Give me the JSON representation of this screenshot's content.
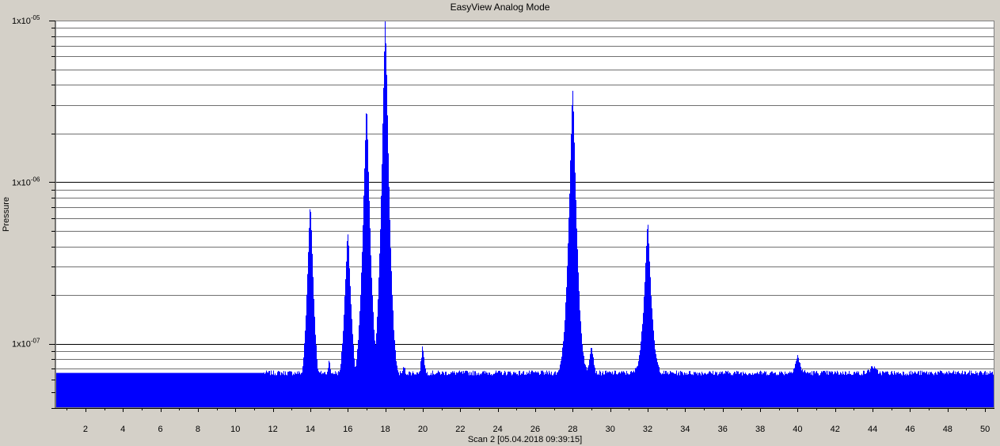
{
  "window": {
    "title": "EasyView Analog Mode"
  },
  "chart_data": {
    "type": "area",
    "title": "EasyView Analog Mode",
    "xlabel": "Scan 2 [05.04.2018 09:39:15]",
    "ylabel": "Pressure",
    "x_scale": "linear",
    "y_scale": "log",
    "xlim": [
      0.4,
      50.5
    ],
    "ylim": [
      4e-08,
      1e-05
    ],
    "x_ticks": [
      2,
      4,
      6,
      8,
      10,
      12,
      14,
      16,
      18,
      20,
      22,
      24,
      26,
      28,
      30,
      32,
      34,
      36,
      38,
      40,
      42,
      44,
      46,
      48,
      50
    ],
    "x_tick_labels": [
      "2",
      "4",
      "6",
      "8",
      "10",
      "12",
      "14",
      "16",
      "18",
      "20",
      "22",
      "24",
      "26",
      "28",
      "30",
      "32",
      "34",
      "36",
      "38",
      "40",
      "42",
      "44",
      "46",
      "48",
      "50"
    ],
    "y_major_ticks": [
      {
        "value": 1e-05,
        "mantissa": "1x10",
        "exponent": "-05"
      },
      {
        "value": 1e-06,
        "mantissa": "1x10",
        "exponent": "-06"
      },
      {
        "value": 1e-07,
        "mantissa": "1x10",
        "exponent": "-07"
      }
    ],
    "grid": "horizontal major and minor lines",
    "fill_color": "#0000ff",
    "background_color": "#ffffff",
    "baseline": {
      "pressure": 4.1e-08,
      "range": [
        0.4,
        11.5
      ]
    },
    "background": [
      {
        "from": 11.5,
        "to": 12.8,
        "pressure": 4.4e-08
      },
      {
        "from": 20.5,
        "to": 22.0,
        "pressure": 5.5e-08
      },
      {
        "from": 22.0,
        "to": 26.0,
        "pressure": 5.8e-08
      },
      {
        "from": 30.0,
        "to": 30.3,
        "pressure": 6.2e-08
      },
      {
        "from": 33.0,
        "to": 50.5,
        "pressure": 6.6e-08
      }
    ],
    "peaks": [
      {
        "mass": 12,
        "pressure": 5e-08
      },
      {
        "mass": 14,
        "pressure": 7.5e-07
      },
      {
        "mass": 15,
        "pressure": 8e-08
      },
      {
        "mass": 16,
        "pressure": 5e-07
      },
      {
        "mass": 17,
        "pressure": 2.9e-06
      },
      {
        "mass": 18,
        "pressure": 1e-05
      },
      {
        "mass": 19,
        "pressure": 7.3e-08
      },
      {
        "mass": 20,
        "pressure": 9.6e-08
      },
      {
        "mass": 28,
        "pressure": 3.8e-06
      },
      {
        "mass": 29,
        "pressure": 1e-07
      },
      {
        "mass": 32,
        "pressure": 5.7e-07
      },
      {
        "mass": 40,
        "pressure": 8.4e-08
      },
      {
        "mass": 44,
        "pressure": 7.3e-08
      }
    ]
  }
}
